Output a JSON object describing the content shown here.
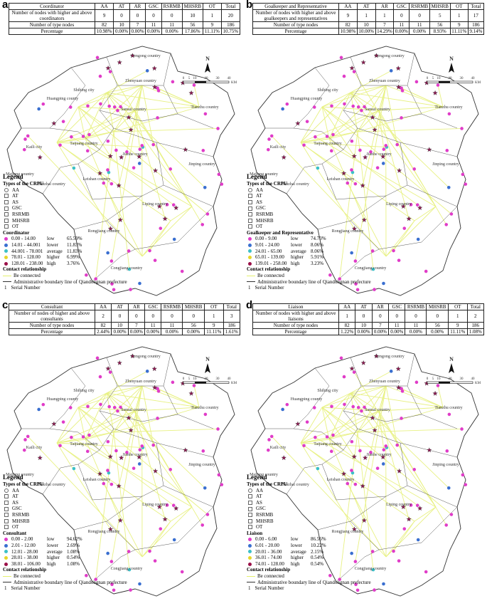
{
  "panels": [
    {
      "label": "a",
      "table": {
        "header": [
          "Coordinator",
          "AA",
          "AT",
          "AR",
          "GSC",
          "RSRMB",
          "MHSRB",
          "OT",
          "Total"
        ],
        "rows": [
          [
            "Number of nodes with higher and above coordinators",
            9,
            0,
            0,
            0,
            0,
            10,
            1,
            20
          ],
          [
            "Number of type nodes",
            82,
            10,
            7,
            11,
            11,
            56,
            9,
            186
          ],
          [
            "Percentage",
            "10.98%",
            "0.00%",
            "0.00%",
            "0.00%",
            "0.00%",
            "17.86%",
            "11.11%",
            "10.75%"
          ]
        ]
      },
      "legend_title": "Coordinator",
      "classes": [
        [
          "0.00 - 14.00",
          "low",
          "65.59%"
        ],
        [
          "14.01 - 44.001",
          "lower",
          "11.83%"
        ],
        [
          "44.001 - 78.001",
          "average",
          "11.83%"
        ],
        [
          "78.01 - 128.00",
          "higher",
          "6.99%"
        ],
        [
          "128.01 - 238.00",
          "high",
          "3.76%"
        ]
      ]
    },
    {
      "label": "b",
      "table": {
        "header": [
          "Goalkeeper and Representative",
          "AA",
          "AT",
          "AR",
          "GSC",
          "RSRMB",
          "MHSRB",
          "OT",
          "Total"
        ],
        "rows": [
          [
            "Number of nodes with higher and above goalkeepers and representatives",
            9,
            1,
            1,
            0,
            0,
            5,
            1,
            17
          ],
          [
            "Number of type nodes",
            82,
            10,
            7,
            11,
            11,
            56,
            9,
            186
          ],
          [
            "Percentage",
            "10.98%",
            "10.00%",
            "14.29%",
            "0.00%",
            "0.00%",
            "8.93%",
            "11.11%",
            "9.14%"
          ]
        ]
      },
      "legend_title": "Goalkeeper and Representative",
      "classes": [
        [
          "0.00 - 9.00",
          "low",
          "74.73%"
        ],
        [
          "9.01 - 24.00",
          "lower",
          "8.06%"
        ],
        [
          "24.01 - 65.00",
          "average",
          "8.06%"
        ],
        [
          "65.01 - 139.00",
          "higher",
          "5.91%"
        ],
        [
          "139.01 - 258.00",
          "high",
          "3.23%"
        ]
      ]
    },
    {
      "label": "c",
      "table": {
        "header": [
          "Consultant",
          "AA",
          "AT",
          "AR",
          "GSC",
          "RSRMB",
          "MHSRB",
          "OT",
          "Total"
        ],
        "rows": [
          [
            "Number of nodes of higher and above consultants",
            2,
            0,
            0,
            0,
            0,
            0,
            1,
            3
          ],
          [
            "Number of type nodes",
            82,
            10,
            7,
            11,
            11,
            56,
            9,
            186
          ],
          [
            "Percentage",
            "2.44%",
            "0.00%",
            "0.00%",
            "0.00%",
            "0.00%",
            "0.00%",
            "11.11%",
            "1.61%"
          ]
        ]
      },
      "legend_title": "Consultant",
      "classes": [
        [
          "0.00 - 2.00",
          "low",
          "94.62%"
        ],
        [
          "2.01 - 12.00",
          "lower",
          "2.69%"
        ],
        [
          "12.01 - 28.00",
          "average",
          "1.08%"
        ],
        [
          "28.01 - 38.00",
          "higher",
          "0.54%"
        ],
        [
          "38.01 - 106.00",
          "high",
          "1.08%"
        ]
      ]
    },
    {
      "label": "d",
      "table": {
        "header": [
          "Liaison",
          "AA",
          "AT",
          "AR",
          "GSC",
          "RSRMB",
          "MHSRB",
          "OT",
          "Total"
        ],
        "rows": [
          [
            "Number of nodes with higher and above liaisons",
            1,
            0,
            0,
            0,
            0,
            0,
            1,
            2
          ],
          [
            "Number of type nodes",
            82,
            10,
            7,
            11,
            11,
            56,
            9,
            186
          ],
          [
            "Percentage",
            "1.22%",
            "0.00%",
            "0.00%",
            "0.00%",
            "0.00%",
            "0.00%",
            "11.11%",
            "1.08%"
          ]
        ]
      },
      "legend_title": "Liaison",
      "classes": [
        [
          "0.00 - 6.00",
          "low",
          "86.56%"
        ],
        [
          "6.01 - 20.00",
          "lower",
          "10.22%"
        ],
        [
          "20.01 - 36.00",
          "average",
          "2.15%"
        ],
        [
          "36.01 - 74.00",
          "higher",
          "0.54%"
        ],
        [
          "74.01 - 128.00",
          "high",
          "0.54%"
        ]
      ]
    }
  ],
  "class_colors": [
    "#e03cc8",
    "#3a6fd0",
    "#3cc0c8",
    "#e6d62a",
    "#9a1048"
  ],
  "counties": [
    "Cengong country",
    "Zhenyuan country",
    "Shibing city",
    "Huangping county",
    "Sansui country",
    "Tianzhu country",
    "Kaili city",
    "Taijiang country",
    "Majiang country",
    "Danzhai country",
    "Leishan country",
    "Jianhe country",
    "Jinping country",
    "Liping country",
    "Rongjiang country",
    "Congjiang country"
  ],
  "scale": {
    "north": "N",
    "ticks": [
      0,
      5,
      10,
      20,
      30,
      40
    ],
    "unit": "KM"
  },
  "legend": {
    "title": "Legend",
    "types_title": "Types of the CRPU",
    "types": [
      "AA",
      "AT",
      "AS",
      "GSC",
      "RSRMB",
      "MHSRB",
      "OT"
    ],
    "contact_title": "Contact relationship",
    "connected": "Be connected",
    "boundary": "Administrative boundary line of Qiandongnan prefecture",
    "serial_symbol": "1",
    "serial_label": "Serial Number"
  }
}
